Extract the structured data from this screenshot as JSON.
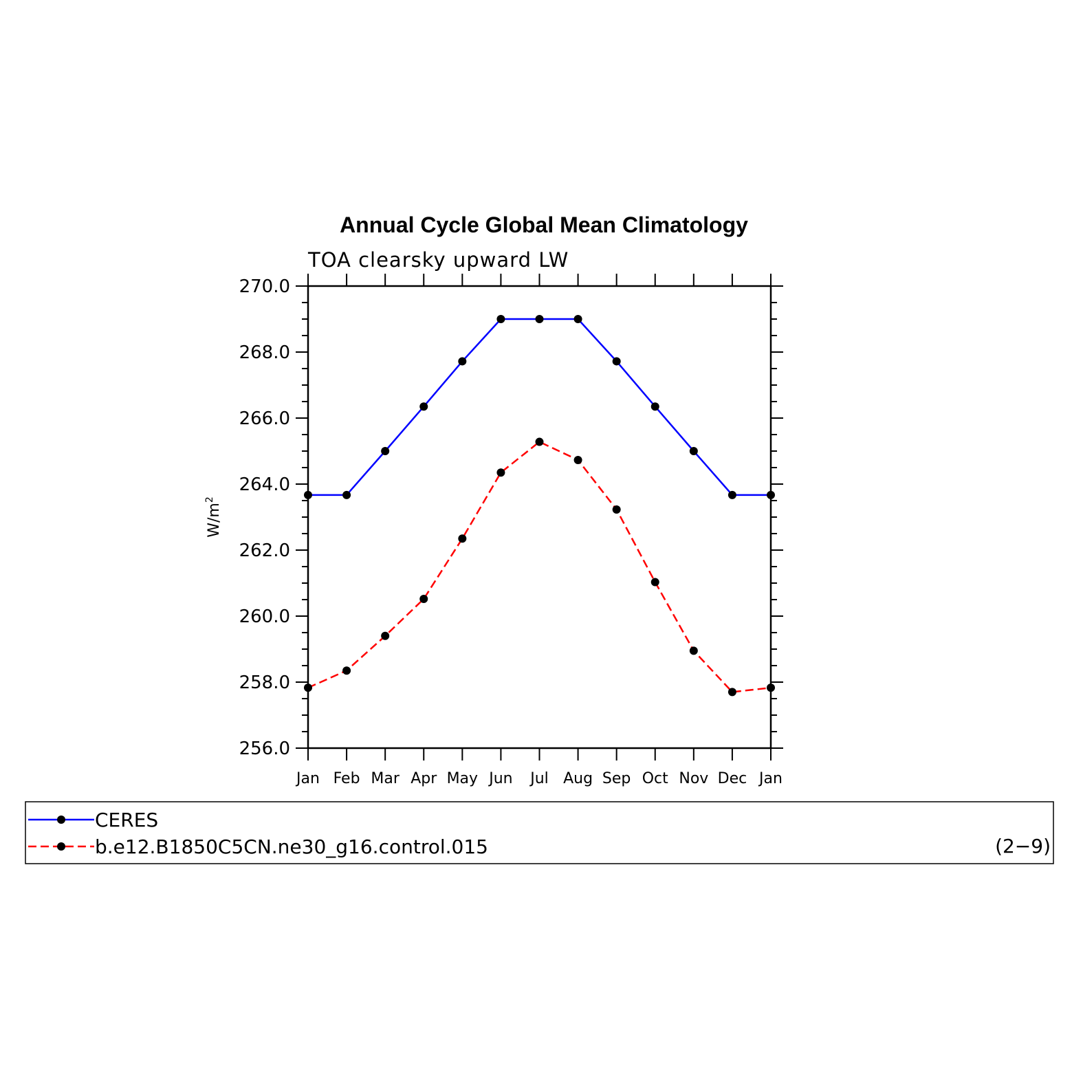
{
  "chart_data": {
    "type": "line",
    "title": "Annual Cycle Global Mean Climatology",
    "subtitle": "TOA clearsky upward LW",
    "ylabel_base": "W/m",
    "ylabel_sup": "2",
    "categories": [
      "Jan",
      "Feb",
      "Mar",
      "Apr",
      "May",
      "Jun",
      "Jul",
      "Aug",
      "Sep",
      "Oct",
      "Nov",
      "Dec",
      "Jan"
    ],
    "ylim": [
      256.0,
      270.0
    ],
    "yticks": [
      "256.0",
      "258.0",
      "260.0",
      "262.0",
      "264.0",
      "266.0",
      "268.0",
      "270.0"
    ],
    "series": [
      {
        "name": "CERES",
        "color": "#0000ff",
        "dash": "solid",
        "values": [
          263.67,
          263.67,
          265.0,
          266.35,
          267.72,
          269.0,
          269.0,
          269.0,
          267.72,
          266.35,
          265.0,
          263.67,
          263.67
        ]
      },
      {
        "name": "b.e12.B1850C5CN.ne30_g16.control.015",
        "color": "#ff0000",
        "dash": "dashed",
        "values": [
          257.83,
          258.35,
          259.4,
          260.52,
          262.35,
          264.35,
          265.28,
          264.73,
          263.23,
          261.03,
          258.95,
          257.7,
          257.83
        ]
      }
    ],
    "legend_placement": "bottom",
    "legend_note": "(2−9)",
    "grid": false
  }
}
